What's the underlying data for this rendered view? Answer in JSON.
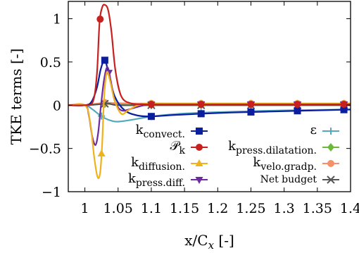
{
  "chart_data": {
    "type": "line",
    "xlabel": "x/C",
    "xlabel_sub": "x",
    "xlabel_unit": " [-]",
    "ylabel": "TKE terms [-]",
    "xlim": [
      0.975,
      1.4
    ],
    "ylim": [
      -1.0,
      1.2
    ],
    "xticks": [
      1,
      1.05,
      1.1,
      1.15,
      1.2,
      1.25,
      1.3,
      1.35,
      1.4
    ],
    "xtick_labels": [
      "1",
      "1.05",
      "1.1",
      "1.15",
      "1.2",
      "1.25",
      "1.3",
      "1.35",
      "1.4"
    ],
    "yticks": [
      -1,
      -0.5,
      0,
      0.5,
      1
    ],
    "ytick_labels": [
      "−1",
      "−0.5",
      "0",
      "0.5",
      "1"
    ],
    "grid": false,
    "legend_placement": "lower-right",
    "series": [
      {
        "name": "k",
        "name_sub": "convect.",
        "color": "#0b1e9e",
        "marker": "square",
        "x": [
          0.975,
          1.0,
          1.01,
          1.018,
          1.024,
          1.03,
          1.036,
          1.045,
          1.06,
          1.08,
          1.1,
          1.13,
          1.17,
          1.22,
          1.27,
          1.32,
          1.36,
          1.4
        ],
        "y": [
          0,
          0,
          0.04,
          0.2,
          0.42,
          0.52,
          0.36,
          0.1,
          -0.06,
          -0.12,
          -0.13,
          -0.115,
          -0.1,
          -0.085,
          -0.075,
          -0.065,
          -0.058,
          -0.05
        ],
        "marker_x": [
          1.03,
          1.1,
          1.175,
          1.25,
          1.32,
          1.39
        ]
      },
      {
        "name": "P",
        "name_sub": "k",
        "color": "#c8201e",
        "marker": "circle",
        "x": [
          0.975,
          1.0,
          1.012,
          1.018,
          1.022,
          1.026,
          1.03,
          1.035,
          1.04,
          1.046,
          1.055,
          1.07,
          1.09,
          1.12,
          1.2,
          1.3,
          1.4
        ],
        "y": [
          0,
          0,
          0.04,
          0.35,
          0.95,
          1.13,
          1.16,
          1.1,
          0.85,
          0.4,
          0.1,
          0.02,
          0.01,
          0.01,
          0.01,
          0.01,
          0.01
        ],
        "marker_x": [
          1.023,
          1.1,
          1.175,
          1.25,
          1.32,
          1.39
        ]
      },
      {
        "name": "k",
        "name_sub": "diffusion.",
        "color": "#f0b21c",
        "marker": "triangle",
        "x": [
          0.975,
          1.0,
          1.008,
          1.014,
          1.019,
          1.023,
          1.026,
          1.029,
          1.033,
          1.038,
          1.045,
          1.055,
          1.065,
          1.08,
          1.1,
          1.15,
          1.4
        ],
        "y": [
          0,
          0,
          -0.2,
          -0.6,
          -0.83,
          -0.78,
          -0.45,
          0.1,
          0.38,
          0.28,
          0.05,
          -0.1,
          -0.06,
          0.0,
          0.02,
          0.02,
          0.02
        ],
        "marker_x": [
          1.025,
          1.1,
          1.175,
          1.25,
          1.32,
          1.39
        ]
      },
      {
        "name": "k",
        "name_sub": "press.diff.",
        "color": "#6e2aa0",
        "marker": "triangle-down",
        "x": [
          0.975,
          1.0,
          1.006,
          1.011,
          1.016,
          1.02,
          1.024,
          1.029,
          1.034,
          1.039,
          1.045,
          1.055,
          1.07,
          1.09,
          1.12,
          1.4
        ],
        "y": [
          0,
          0,
          -0.12,
          -0.36,
          -0.46,
          -0.32,
          -0.02,
          0.3,
          0.44,
          0.28,
          0.05,
          -0.06,
          -0.04,
          0.0,
          0.01,
          0.01
        ],
        "marker_x": [
          1.036,
          1.1,
          1.175,
          1.25,
          1.32,
          1.39
        ]
      },
      {
        "name": "ε",
        "name_sub": "",
        "color": "#55a9bd",
        "marker": "plus",
        "x": [
          0.975,
          1.0,
          1.01,
          1.02,
          1.03,
          1.04,
          1.05,
          1.07,
          1.1,
          1.14,
          1.2,
          1.3,
          1.4
        ],
        "y": [
          0,
          0,
          -0.04,
          -0.1,
          -0.15,
          -0.18,
          -0.19,
          -0.17,
          -0.13,
          -0.1,
          -0.08,
          -0.06,
          -0.05
        ],
        "marker_x": [
          1.025,
          1.1,
          1.175,
          1.25,
          1.32,
          1.39
        ]
      },
      {
        "name": "k",
        "name_sub": "press.dilatation.",
        "color": "#6cb83b",
        "marker": "diamond",
        "x": [
          0.975,
          1.0,
          1.02,
          1.03,
          1.045,
          1.07,
          1.1,
          1.4
        ],
        "y": [
          0,
          0,
          0.01,
          0.015,
          0.01,
          0.005,
          0.0,
          0.0
        ],
        "marker_x": [
          1.03,
          1.1,
          1.175,
          1.25,
          1.32,
          1.39
        ]
      },
      {
        "name": "k",
        "name_sub": "velo.gradp.",
        "color": "#f5906a",
        "marker": "circle",
        "x": [
          0.975,
          1.0,
          1.02,
          1.03,
          1.045,
          1.07,
          1.1,
          1.2,
          1.4
        ],
        "y": [
          0,
          0,
          0.02,
          0.03,
          0.025,
          0.02,
          0.02,
          0.02,
          0.02
        ],
        "marker_x": [
          1.03,
          1.1,
          1.175,
          1.25,
          1.32,
          1.39
        ]
      },
      {
        "name": "Net budget",
        "name_sub": "",
        "color": "#555555",
        "marker": "cross",
        "x": [
          0.975,
          1.0,
          1.02,
          1.035,
          1.05,
          1.1,
          1.2,
          1.4
        ],
        "y": [
          0,
          0,
          0.01,
          0.02,
          0.0,
          0.0,
          0.0,
          0.0
        ],
        "marker_x": [
          1.03,
          1.1,
          1.175,
          1.25,
          1.32,
          1.39
        ]
      }
    ]
  }
}
